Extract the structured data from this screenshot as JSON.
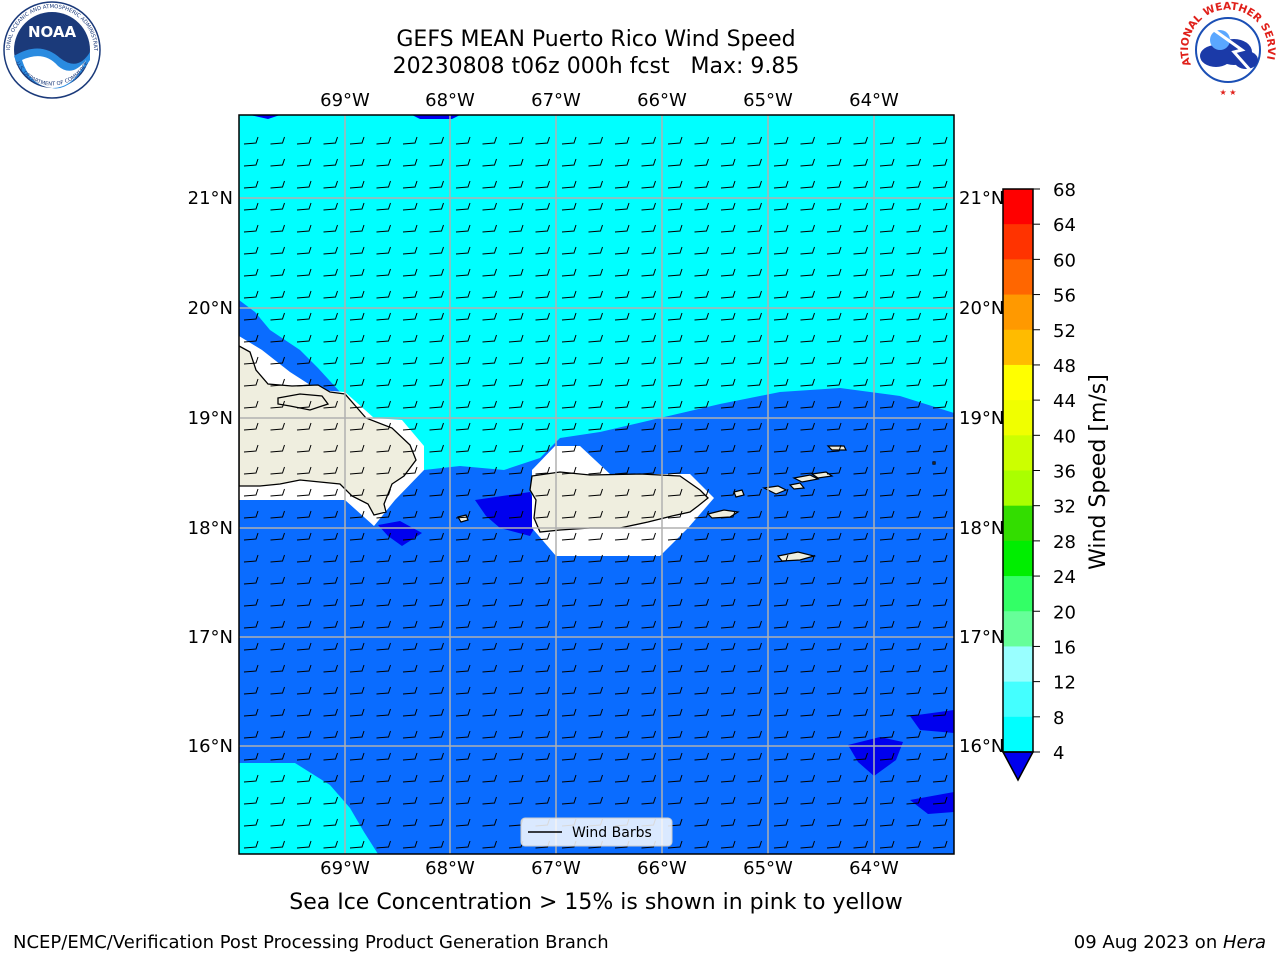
{
  "header": {
    "title_line1": "GEFS MEAN Puerto Rico Wind Speed",
    "title_line2": "20230808 t06z 000h fcst   Max: 9.85"
  },
  "logos": {
    "noaa_text": "NOAA",
    "noaa_ring_top": "NATIONAL OCEANIC AND ATMOSPHERIC ADMINISTRATION",
    "noaa_ring_bottom": "U.S. DEPARTMENT OF COMMERCE",
    "nws_ring": "NATIONAL WEATHER SERVICE"
  },
  "map": {
    "lon_labels": [
      "69°W",
      "68°W",
      "67°W",
      "66°W",
      "65°W",
      "64°W"
    ],
    "lat_labels": [
      "21°N",
      "20°N",
      "19°N",
      "18°N",
      "17°N",
      "16°N"
    ],
    "legend_label": "Wind Barbs",
    "colors": {
      "band_4_8": "#0a6cff",
      "band_8_12": "#00ffff",
      "band_lt4": "#0000ee",
      "land": "#efeedf"
    }
  },
  "colorbar": {
    "label": "Wind Speed [m/s]",
    "ticks": [
      "68",
      "64",
      "60",
      "56",
      "52",
      "48",
      "44",
      "40",
      "36",
      "32",
      "28",
      "24",
      "20",
      "16",
      "12",
      "8",
      "4"
    ],
    "colors": [
      "#ff0000",
      "#ff3300",
      "#ff6600",
      "#ff9900",
      "#ffbb00",
      "#ffff00",
      "#f0ff00",
      "#ccff00",
      "#aaff00",
      "#33dd00",
      "#00ee00",
      "#33ff66",
      "#66ff99",
      "#99ffff",
      "#44ffff",
      "#00ffff",
      "#0a6cff"
    ],
    "extend_color": "#0000ee"
  },
  "caption": "Sea Ice Concentration > 15% is shown in pink to yellow",
  "footer": {
    "left": "NCEP/EMC/Verification Post Processing Product Generation Branch",
    "right_prefix": "09 Aug 2023 on ",
    "right_host": "Hera"
  }
}
